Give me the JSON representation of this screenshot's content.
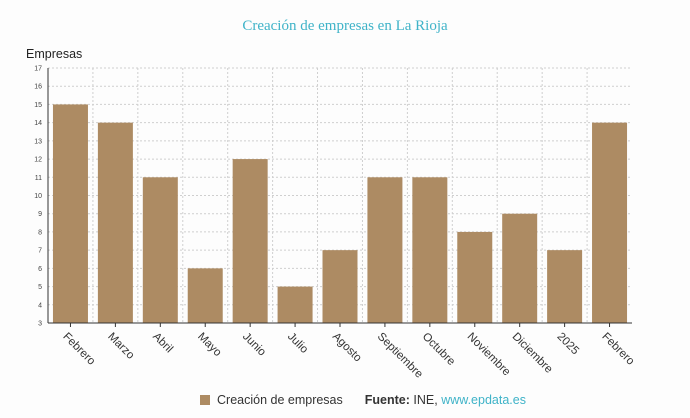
{
  "chart_data": {
    "type": "bar",
    "title": "Creación de empresas en La Rioja",
    "ylabel": "Empresas",
    "xlabel": "",
    "categories": [
      "Febrero",
      "Marzo",
      "Abril",
      "Mayo",
      "Junio",
      "Julio",
      "Agosto",
      "Septiembre",
      "Octubre",
      "Noviembre",
      "Diciembre",
      "2025",
      "Febrero"
    ],
    "series": [
      {
        "name": "Creación de empresas",
        "values": [
          15,
          14,
          11,
          6,
          12,
          5,
          7,
          11,
          11,
          8,
          9,
          7,
          14
        ]
      }
    ],
    "ylim": [
      3,
      17
    ],
    "yticks": [
      "3",
      "4",
      "5",
      "6",
      "7",
      "8",
      "9",
      "10",
      "11",
      "12",
      "13",
      "14",
      "15",
      "16",
      "17"
    ],
    "grid": true,
    "legend_position": "bottom",
    "bar_color": "#ad8b63"
  },
  "legend": {
    "series_label": "Creación de empresas",
    "source_label": "Fuente:",
    "source_text": "INE,",
    "source_link": "www.epdata.es"
  }
}
